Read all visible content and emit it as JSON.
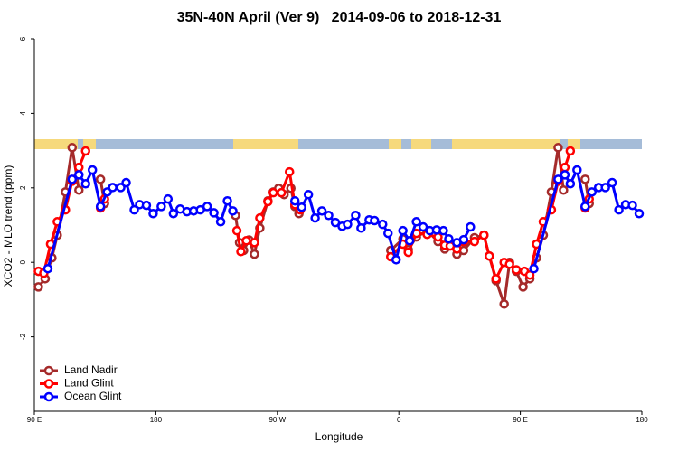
{
  "chart_data": {
    "type": "line",
    "title": "35N-40N April (Ver 9)   2014-09-06 to 2018-12-31",
    "x_label": "Longitude",
    "y_label": "XCO2 - MLO trend (ppm)",
    "xlim": [
      90,
      540
    ],
    "xticks": [
      {
        "value": 90,
        "label": "90 E"
      },
      {
        "value": 180,
        "label": "180"
      },
      {
        "value": 270,
        "label": "90 W"
      },
      {
        "value": 360,
        "label": "0"
      },
      {
        "value": 450,
        "label": "90 E"
      },
      {
        "value": 540,
        "label": "180"
      }
    ],
    "ylim": [
      -4,
      6
    ],
    "yticks": [
      -2,
      0,
      2,
      4,
      6
    ],
    "legend": "bottomleft",
    "series": [
      {
        "name": "Land Nadir",
        "color": "#a52a2a",
        "x": [
          93,
          98,
          103,
          107,
          113,
          118,
          123,
          130,
          139,
          142,
          190,
          239,
          242,
          245,
          249,
          253,
          257,
          263,
          267,
          271,
          275,
          280,
          283,
          286,
          320,
          354,
          363,
          367,
          373,
          381,
          389,
          394,
          398,
          403,
          408,
          416,
          423,
          427,
          432,
          438,
          442,
          447,
          452,
          457,
          462,
          467,
          473,
          478,
          482,
          490,
          498,
          501
        ],
        "values": [
          -0.66,
          -0.44,
          0.12,
          0.73,
          1.89,
          3.08,
          1.94,
          null,
          2.23,
          1.58,
          null,
          1.26,
          0.53,
          0.32,
          0.6,
          0.22,
          0.92,
          1.65,
          1.89,
          1.99,
          1.82,
          1.99,
          1.5,
          1.31,
          null,
          0.32,
          0.63,
          0.34,
          0.68,
          0.85,
          0.56,
          0.36,
          0.49,
          0.22,
          0.32,
          0.66,
          0.73,
          0.17,
          -0.49,
          -1.12,
          0.0,
          -0.24,
          -0.66,
          -0.44,
          0.12,
          0.73,
          1.89,
          3.08,
          1.94,
          null,
          2.23,
          1.58
        ]
      },
      {
        "name": "Land Glint",
        "color": "#ff0000",
        "x": [
          93,
          97,
          102,
          107,
          113,
          118,
          123,
          128,
          133,
          139,
          142,
          190,
          240,
          243,
          247,
          253,
          257,
          263,
          267,
          273,
          279,
          283,
          287,
          320,
          354,
          363,
          367,
          373,
          381,
          389,
          394,
          398,
          403,
          408,
          416,
          423,
          427,
          432,
          438,
          442,
          447,
          453,
          457,
          462,
          467,
          473,
          478,
          483,
          487,
          492,
          498,
          501
        ],
        "values": [
          -0.24,
          -0.29,
          0.49,
          1.09,
          1.41,
          2.18,
          2.55,
          2.99,
          null,
          1.46,
          1.7,
          null,
          0.85,
          0.29,
          0.58,
          0.53,
          1.19,
          1.63,
          1.87,
          1.87,
          2.43,
          1.55,
          1.41,
          null,
          0.15,
          0.49,
          0.27,
          0.78,
          0.75,
          0.68,
          0.46,
          0.44,
          0.36,
          0.56,
          0.56,
          0.73,
          0.17,
          -0.44,
          0.0,
          -0.05,
          -0.2,
          -0.24,
          -0.34,
          0.49,
          1.09,
          1.41,
          2.18,
          2.55,
          2.99,
          null,
          1.46,
          1.7
        ]
      },
      {
        "name": "Ocean Glint",
        "color": "#0000ff",
        "x": [
          100,
          118,
          123,
          128,
          133,
          139,
          144,
          148,
          154,
          158,
          164,
          168,
          173,
          178,
          184,
          189,
          193,
          198,
          203,
          208,
          213,
          218,
          223,
          228,
          233,
          237,
          260,
          283,
          288,
          293,
          298,
          303,
          308,
          313,
          318,
          322,
          328,
          332,
          338,
          342,
          348,
          352,
          358,
          363,
          368,
          373,
          378,
          383,
          388,
          393,
          397,
          403,
          408,
          413,
          440,
          460,
          478,
          483,
          487,
          492,
          498,
          503,
          508,
          513,
          518,
          523,
          528,
          533,
          538
        ],
        "values": [
          -0.17,
          2.23,
          2.35,
          2.11,
          2.48,
          1.5,
          1.89,
          2.01,
          2.01,
          2.14,
          1.41,
          1.55,
          1.53,
          1.31,
          1.5,
          1.7,
          1.31,
          1.43,
          1.36,
          1.38,
          1.41,
          1.5,
          1.33,
          1.09,
          1.65,
          1.38,
          null,
          1.65,
          1.48,
          1.82,
          1.19,
          1.38,
          1.26,
          1.07,
          0.97,
          1.02,
          1.26,
          0.92,
          1.14,
          1.12,
          1.02,
          0.78,
          0.07,
          0.85,
          0.58,
          1.09,
          0.95,
          0.85,
          0.87,
          0.85,
          0.63,
          0.53,
          0.61,
          0.95,
          null,
          -0.17,
          2.23,
          2.35,
          2.11,
          2.48,
          1.5,
          1.89,
          2.01,
          2.01,
          2.14,
          1.41,
          1.55,
          1.53,
          1.31
        ]
      }
    ]
  }
}
